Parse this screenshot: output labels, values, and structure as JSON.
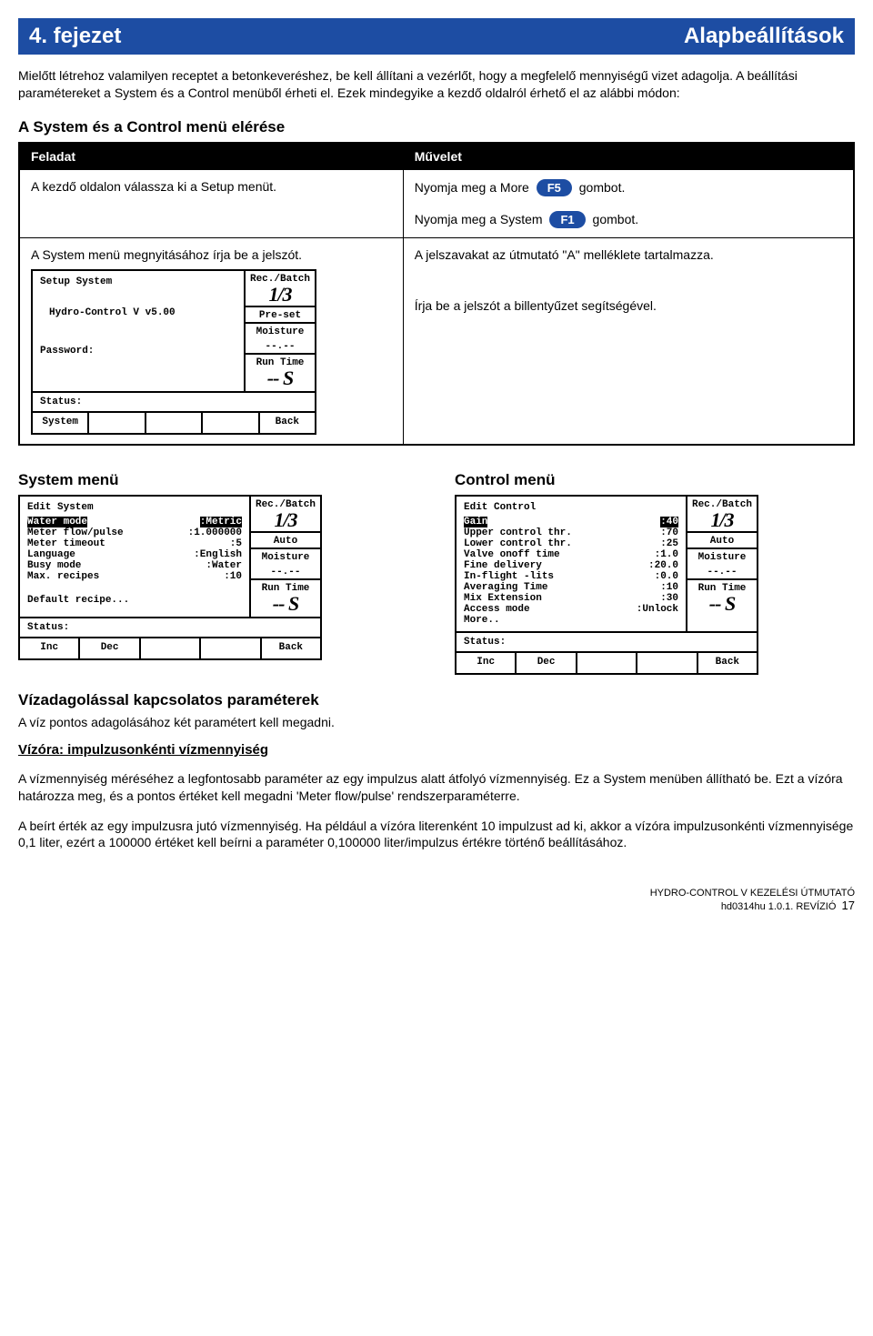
{
  "banner": {
    "chapter": "4. fejezet",
    "title": "Alapbeállítások"
  },
  "intro": "Mielőtt létrehoz valamilyen receptet a betonkeveréshez, be kell állítani a vezérlőt, hogy a megfelelő mennyiségű vizet adagolja. A beállítási paramétereket a System és a Control menüből érheti el. Ezek mindegyike a kezdő oldalról érhető el az alábbi módon:",
  "access_heading": "A System és a Control menü elérése",
  "task_hdr": {
    "feladat": "Feladat",
    "muvelet": "Művelet"
  },
  "row1": {
    "left": "A kezdő oldalon válassza ki a Setup menüt.",
    "right_a": "Nyomja meg a More",
    "right_b": "gombot.",
    "right2_a": "Nyomja meg a System",
    "right2_b": "gombot.",
    "pill1": "F5",
    "pill2": "F1"
  },
  "row2": {
    "left": "A System menü megnyitásához írja be a jelszót.",
    "right1": "A jelszavakat az útmutató \"A\" melléklete tartalmazza.",
    "right2": "Írja be a jelszót a billentyűzet segítségével."
  },
  "lcd_setup": {
    "title": "Setup System",
    "l1": "Hydro-Control V v5.00",
    "l2": "Password:",
    "status": "Status:",
    "side_rec": "Rec./Batch",
    "side_big1": "1/3",
    "side_preset": "Pre-set",
    "side_moist": "Moisture",
    "side_moistv": "--.--",
    "side_run": "Run Time",
    "side_runv": "-- S",
    "f1": "System",
    "f5": "Back"
  },
  "menus_hdr": {
    "system": "System menü",
    "control": "Control menü"
  },
  "lcd_system": {
    "title": "Edit System",
    "items": [
      [
        "Water mode",
        "Metric",
        true
      ],
      [
        "Meter flow/pulse",
        "1.000000",
        false
      ],
      [
        "Meter timeout",
        "5",
        false
      ],
      [
        "Language",
        "English",
        false
      ],
      [
        "Busy mode",
        "Water",
        false
      ],
      [
        "Max. recipes",
        "10",
        false
      ]
    ],
    "last": "Default recipe...",
    "status": "Status:",
    "side_rec": "Rec./Batch",
    "side_big1": "1/3",
    "side_auto": "Auto",
    "side_moist": "Moisture",
    "side_moistv": "--.--",
    "side_run": "Run Time",
    "side_runv": "-- S",
    "f1": "Inc",
    "f2": "Dec",
    "f5": "Back"
  },
  "lcd_control": {
    "title": "Edit Control",
    "items": [
      [
        "Gain",
        "40",
        true
      ],
      [
        "Upper control thr.",
        "70",
        false
      ],
      [
        "Lower control thr.",
        "25",
        false
      ],
      [
        "Valve onoff time",
        "1.0",
        false
      ],
      [
        "Fine delivery",
        "20.0",
        false
      ],
      [
        "In-flight -lits",
        "0.0",
        false
      ],
      [
        "Averaging Time",
        "10",
        false
      ],
      [
        "Mix Extension",
        "30",
        false
      ],
      [
        "Access mode",
        "Unlock",
        false
      ]
    ],
    "last": "More..",
    "status": "Status:",
    "side_rec": "Rec./Batch",
    "side_big1": "1/3",
    "side_auto": "Auto",
    "side_moist": "Moisture",
    "side_moistv": "--.--",
    "side_run": "Run Time",
    "side_runv": "-- S",
    "f1": "Inc",
    "f2": "Dec",
    "f5": "Back"
  },
  "params_h": "Vízadagolással kapcsolatos paraméterek",
  "params_p": "A víz pontos adagolásához két paramétert kell megadni.",
  "sub_h": "Vízóra: impulzusonkénti vízmennyiség",
  "p2": "A vízmennyiség méréséhez a legfontosabb paraméter az egy impulzus alatt átfolyó vízmennyiség. Ez a System menüben állítható be. Ezt a vízóra határozza meg, és a pontos értéket kell megadni 'Meter flow/pulse' rendszerparaméterre.",
  "p3": "A beírt érték az egy impulzusra jutó vízmennyiség. Ha például a vízóra literenként 10 impulzust ad ki, akkor a vízóra impulzusonkénti vízmennyisége 0,1 liter, ezért a 100000 értéket kell beírni a paraméter 0,100000 liter/impulzus értékre történő beállításához.",
  "footer": {
    "l1": "HYDRO-CONTROL V KEZELÉSI ÚTMUTATÓ",
    "l2": "hd0314hu 1.0.1. REVÍZIÓ",
    "pg": "17"
  }
}
